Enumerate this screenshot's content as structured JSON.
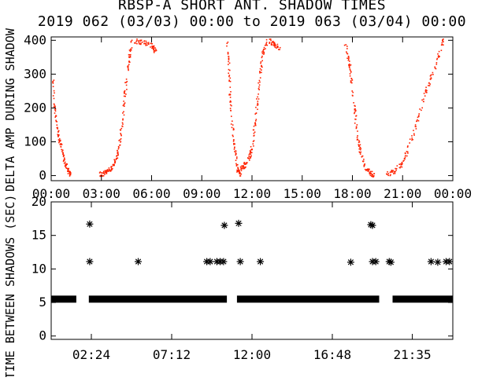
{
  "colors": {
    "background": "#ffffff",
    "axes": "#000000",
    "top_points": "#ff2200",
    "bottom_points": "#000000"
  },
  "chart_data": [
    {
      "type": "scatter",
      "title": "RBSP-A SHORT ANT. SHADOW TIMES",
      "subtitle": "2019 062 (03/03) 00:00 to 2019 063 (03/04) 00:00",
      "xlabel": "",
      "ylabel": "DELTA AMP DURING SHADOW",
      "xlim": [
        0,
        24
      ],
      "ylim": [
        -15,
        410
      ],
      "x_ticks": [
        0,
        3,
        6,
        9,
        12,
        15,
        18,
        21,
        24
      ],
      "x_tick_labels": [
        "00:00",
        "03:00",
        "06:00",
        "09:00",
        "12:00",
        "15:00",
        "18:00",
        "21:00",
        "00:00"
      ],
      "y_ticks": [
        0,
        100,
        200,
        300,
        400
      ],
      "y_tick_labels": [
        "0",
        "100",
        "200",
        "300",
        "400"
      ],
      "grid": false,
      "legend": "none",
      "series": [
        {
          "color": "#ff2200",
          "curves": [
            {
              "points": [
                [
                  0.05,
                  300
                ],
                [
                  0.2,
                  190
                ],
                [
                  0.4,
                  120
                ],
                [
                  0.6,
                  80
                ],
                [
                  0.8,
                  40
                ],
                [
                  1.0,
                  15
                ],
                [
                  1.1,
                  5
                ]
              ]
            },
            {
              "points": [
                [
                  2.9,
                  5
                ],
                [
                  3.2,
                  10
                ],
                [
                  3.5,
                  20
                ],
                [
                  3.8,
                  45
                ],
                [
                  4.0,
                  80
                ],
                [
                  4.2,
                  150
                ],
                [
                  4.4,
                  250
                ],
                [
                  4.6,
                  340
                ],
                [
                  4.8,
                  405
                ]
              ]
            },
            {
              "points": [
                [
                  5.0,
                  400
                ],
                [
                  5.5,
                  395
                ],
                [
                  6.0,
                  385
                ],
                [
                  6.2,
                  370
                ]
              ]
            },
            {
              "points": [
                [
                  10.5,
                  400
                ],
                [
                  10.6,
                  300
                ],
                [
                  10.7,
                  200
                ],
                [
                  10.9,
                  90
                ],
                [
                  11.1,
                  20
                ],
                [
                  11.3,
                  5
                ]
              ]
            },
            {
              "points": [
                [
                  11.2,
                  15
                ],
                [
                  11.5,
                  30
                ],
                [
                  11.8,
                  55
                ],
                [
                  12.0,
                  90
                ],
                [
                  12.2,
                  180
                ],
                [
                  12.4,
                  280
                ],
                [
                  12.6,
                  360
                ],
                [
                  12.9,
                  405
                ]
              ]
            },
            {
              "points": [
                [
                  13.0,
                  400
                ],
                [
                  13.3,
                  390
                ],
                [
                  13.6,
                  380
                ]
              ]
            },
            {
              "points": [
                [
                  17.5,
                  400
                ],
                [
                  17.8,
                  330
                ],
                [
                  18.0,
                  240
                ],
                [
                  18.2,
                  150
                ],
                [
                  18.4,
                  80
                ],
                [
                  18.7,
                  30
                ],
                [
                  19.0,
                  10
                ],
                [
                  19.3,
                  2
                ]
              ]
            },
            {
              "points": [
                [
                  20.0,
                  5
                ],
                [
                  20.5,
                  15
                ],
                [
                  21.0,
                  40
                ],
                [
                  21.5,
                  110
                ],
                [
                  22.0,
                  190
                ],
                [
                  22.5,
                  270
                ],
                [
                  23.0,
                  340
                ],
                [
                  23.4,
                  400
                ]
              ]
            }
          ]
        }
      ]
    },
    {
      "type": "scatter",
      "title": "",
      "xlabel": "",
      "ylabel": "TIME BETWEEN SHADOWS (SEC)",
      "xlim": [
        0,
        24
      ],
      "ylim": [
        -0.5,
        20
      ],
      "x_ticks": [
        2.4,
        7.2,
        12.0,
        16.8,
        21.58
      ],
      "x_tick_labels": [
        "02:24",
        "07:12",
        "12:00",
        "16:48",
        "21:35"
      ],
      "y_ticks": [
        0,
        5,
        10,
        15,
        20
      ],
      "y_tick_labels": [
        "0",
        "5",
        "10",
        "15",
        "20"
      ],
      "grid": false,
      "legend": "none",
      "series": [
        {
          "color": "#000000",
          "baseline": {
            "y": 5.5,
            "segments": [
              [
                0.0,
                1.5
              ],
              [
                2.25,
                10.5
              ],
              [
                11.1,
                19.6
              ],
              [
                20.4,
                24.0
              ]
            ]
          },
          "points": [
            [
              2.3,
              16.7
            ],
            [
              2.3,
              11.1
            ],
            [
              5.2,
              11.1
            ],
            [
              9.3,
              11.1
            ],
            [
              9.5,
              11.1
            ],
            [
              9.9,
              11.1
            ],
            [
              10.1,
              11.1
            ],
            [
              10.3,
              11.1
            ],
            [
              10.35,
              16.5
            ],
            [
              11.2,
              16.8
            ],
            [
              11.3,
              11.1
            ],
            [
              12.5,
              11.1
            ],
            [
              17.9,
              11.0
            ],
            [
              19.1,
              16.6
            ],
            [
              19.2,
              16.5
            ],
            [
              19.2,
              11.1
            ],
            [
              19.4,
              11.1
            ],
            [
              20.2,
              11.1
            ],
            [
              20.3,
              11.0
            ],
            [
              22.7,
              11.1
            ],
            [
              23.1,
              11.0
            ],
            [
              23.6,
              11.1
            ],
            [
              23.8,
              11.1
            ]
          ]
        }
      ]
    }
  ]
}
